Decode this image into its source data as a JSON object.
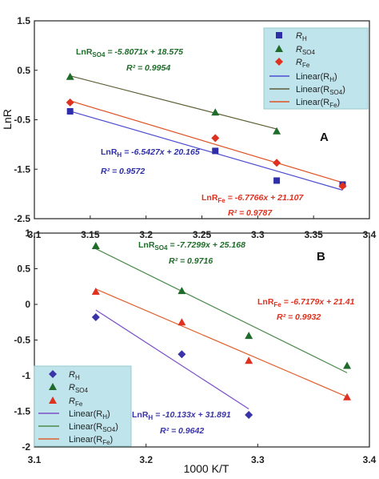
{
  "chart_data": [
    {
      "type": "scatter",
      "panel_label": "A",
      "xlabel": "",
      "ylabel": "LnR",
      "xlim": [
        3.1,
        3.4
      ],
      "ylim": [
        -2.5,
        1.5
      ],
      "x_ticks": [
        "3.1",
        "3.15",
        "3.2",
        "3.25",
        "3.3",
        "3.35",
        "3.4"
      ],
      "y_ticks": [
        "1.5",
        "0.5",
        "-0.5",
        "-1.5",
        "-2.5"
      ],
      "grid": false,
      "legend_position": "top-right",
      "colors": {
        "R_H": "#2e2ea8",
        "R_SO4": "#1f6b2a",
        "R_Fe": "#e03020",
        "legend_bg": "#bfe4ec"
      },
      "series": [
        {
          "name": "R_H",
          "label": "R",
          "subscript": "H",
          "marker": "square",
          "color": "#2e2ea8",
          "x": [
            3.132,
            3.262,
            3.317,
            3.376
          ],
          "y": [
            -0.33,
            -1.13,
            -1.73,
            -1.81
          ],
          "fit": {
            "label": "Linear(R",
            "sub": "H",
            "label_end": ")",
            "slope": -6.5427,
            "intercept": 20.165,
            "equation_prefix": "LnR",
            "equation_sub": "H",
            "equation_rest": " = -6.5427x + 20.165",
            "r2_text": "R² = 0.9572",
            "color": "#4c4cd0"
          }
        },
        {
          "name": "R_SO4",
          "label": "R",
          "subscript": "SO4",
          "marker": "triangle",
          "color": "#1f6b2a",
          "x": [
            3.132,
            3.262,
            3.317
          ],
          "y": [
            0.37,
            -0.35,
            -0.73
          ],
          "fit": {
            "label": "Linear(R",
            "sub": "SO4",
            "label_end": ")",
            "slope": -5.8071,
            "intercept": 18.575,
            "equation_prefix": "LnR",
            "equation_sub": "SO4",
            "equation_rest": " = -5.8071x + 18.575",
            "r2_text": "R² = 0.9954",
            "color": "#5d5d33"
          }
        },
        {
          "name": "R_Fe",
          "label": "R",
          "subscript": "Fe",
          "marker": "diamond",
          "color": "#e03020",
          "x": [
            3.132,
            3.262,
            3.317,
            3.376
          ],
          "y": [
            -0.15,
            -0.87,
            -1.37,
            -1.84
          ],
          "fit": {
            "label": "Linear(R",
            "sub": "Fe",
            "label_end": ")",
            "slope": -6.7766,
            "intercept": 21.107,
            "equation_prefix": "LnR",
            "equation_sub": "Fe",
            "equation_rest": " = -6.7766x + 21.107",
            "r2_text": "R² = 0.9787",
            "color": "#e05020"
          }
        }
      ]
    },
    {
      "type": "scatter",
      "panel_label": "B",
      "xlabel": "1000 K/T",
      "ylabel": "",
      "xlim": [
        3.1,
        3.4
      ],
      "ylim": [
        -2,
        1
      ],
      "x_ticks": [
        "3.1",
        "3.2",
        "3.3",
        "3.4"
      ],
      "y_ticks": [
        "1",
        "0.5",
        "0",
        "-0.5",
        "-1",
        "-1.5",
        "-2"
      ],
      "grid": false,
      "legend_position": "bottom-left",
      "colors": {
        "R_H": "#3a34a8",
        "R_SO4": "#1f6b2a",
        "R_Fe": "#e03020",
        "legend_bg": "#bfe4ec"
      },
      "series": [
        {
          "name": "R_H",
          "label": "R",
          "subscript": "H",
          "marker": "diamond",
          "color": "#3a34a8",
          "x": [
            3.155,
            3.232,
            3.292
          ],
          "y": [
            -0.18,
            -0.7,
            -1.55
          ],
          "fit": {
            "label": "Linear(R",
            "sub": "H",
            "label_end": ")",
            "slope": -10.133,
            "intercept": 31.891,
            "equation_prefix": "LnR",
            "equation_sub": "H",
            "equation_rest": " = -10.133x + 31.891",
            "r2_text": "R² = 0.9642",
            "color": "#7b4fc8"
          }
        },
        {
          "name": "R_SO4",
          "label": "R",
          "subscript": "SO4",
          "marker": "triangle",
          "color": "#1f6b2a",
          "x": [
            3.155,
            3.232,
            3.292,
            3.38
          ],
          "y": [
            0.82,
            0.19,
            -0.44,
            -0.86
          ],
          "fit": {
            "label": "Linear(R",
            "sub": "SO4",
            "label_end": ")",
            "slope": -7.7299,
            "intercept": 25.168,
            "equation_prefix": "LnR",
            "equation_sub": "SO4",
            "equation_rest": " = -7.7299x + 25.168",
            "r2_text": "R² = 0.9716",
            "color": "#4d8a4d"
          }
        },
        {
          "name": "R_Fe",
          "label": "R",
          "subscript": "Fe",
          "marker": "triangle",
          "color": "#e03020",
          "x": [
            3.155,
            3.232,
            3.292,
            3.38
          ],
          "y": [
            0.18,
            -0.25,
            -0.79,
            -1.3
          ],
          "fit": {
            "label": "Linear(R",
            "sub": "Fe",
            "label_end": ")",
            "slope": -6.7179,
            "intercept": 21.41,
            "equation_prefix": "LnR",
            "equation_sub": "Fe",
            "equation_rest": " = -6.7179x + 21.41",
            "r2_text": "R² = 0.9932",
            "color": "#e06030"
          }
        }
      ]
    }
  ]
}
